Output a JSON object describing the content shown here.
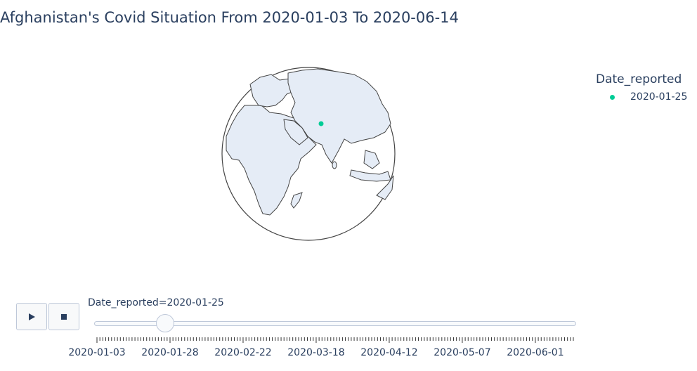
{
  "title": "Afghanistan's Covid Situation From 2020-01-03 To 2020-06-14",
  "legend": {
    "title": "Date_reported",
    "items": [
      {
        "label": "2020-01-25",
        "color": "#00cc96"
      }
    ]
  },
  "controls": {
    "play_icon": "play-icon",
    "stop_icon": "stop-icon",
    "slider_prefix": "Date_reported=",
    "slider_value": "2020-01-25",
    "slider_fraction": 0.134,
    "tick_labels": [
      "2020-01-03",
      "2020-01-28",
      "2020-02-22",
      "2020-03-18",
      "2020-04-12",
      "2020-05-07",
      "2020-06-01"
    ]
  },
  "chart_data": {
    "type": "scatter",
    "projection": "orthographic",
    "title": "Afghanistan's Covid Situation From 2020-01-03 To 2020-06-14",
    "series": [
      {
        "name": "2020-01-25",
        "color": "#00cc96",
        "points": [
          {
            "lat": 33.9,
            "lon": 67.7
          }
        ]
      }
    ],
    "land_color": "#e5ecf6",
    "coast_color": "#444444",
    "legend_placement": "top-right"
  }
}
